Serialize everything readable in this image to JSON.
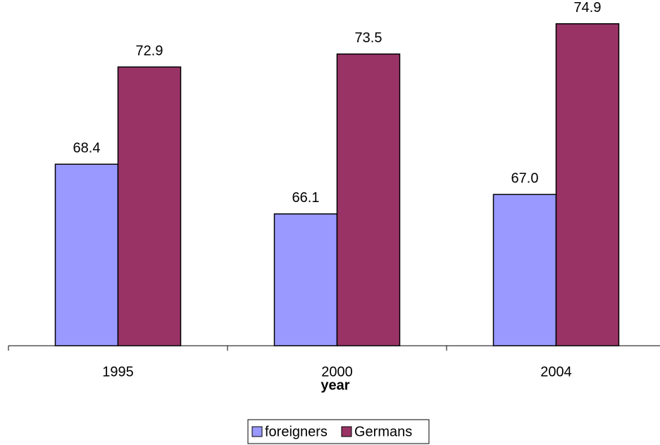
{
  "chart_data": {
    "type": "bar",
    "categories": [
      "1995",
      "2000",
      "2004"
    ],
    "series": [
      {
        "name": "foreigners",
        "color": "#9999ff",
        "values": [
          68.4,
          66.1,
          67.0
        ],
        "value_labels": [
          "68.4",
          "66.1",
          "67.0"
        ]
      },
      {
        "name": "Germans",
        "color": "#993366",
        "values": [
          72.9,
          73.5,
          74.9
        ],
        "value_labels": [
          "72.9",
          "73.5",
          "74.9"
        ]
      }
    ],
    "x_label": "year",
    "ylim": [
      60,
      76
    ],
    "yticks": [],
    "grid": false,
    "legend": "bottom"
  }
}
